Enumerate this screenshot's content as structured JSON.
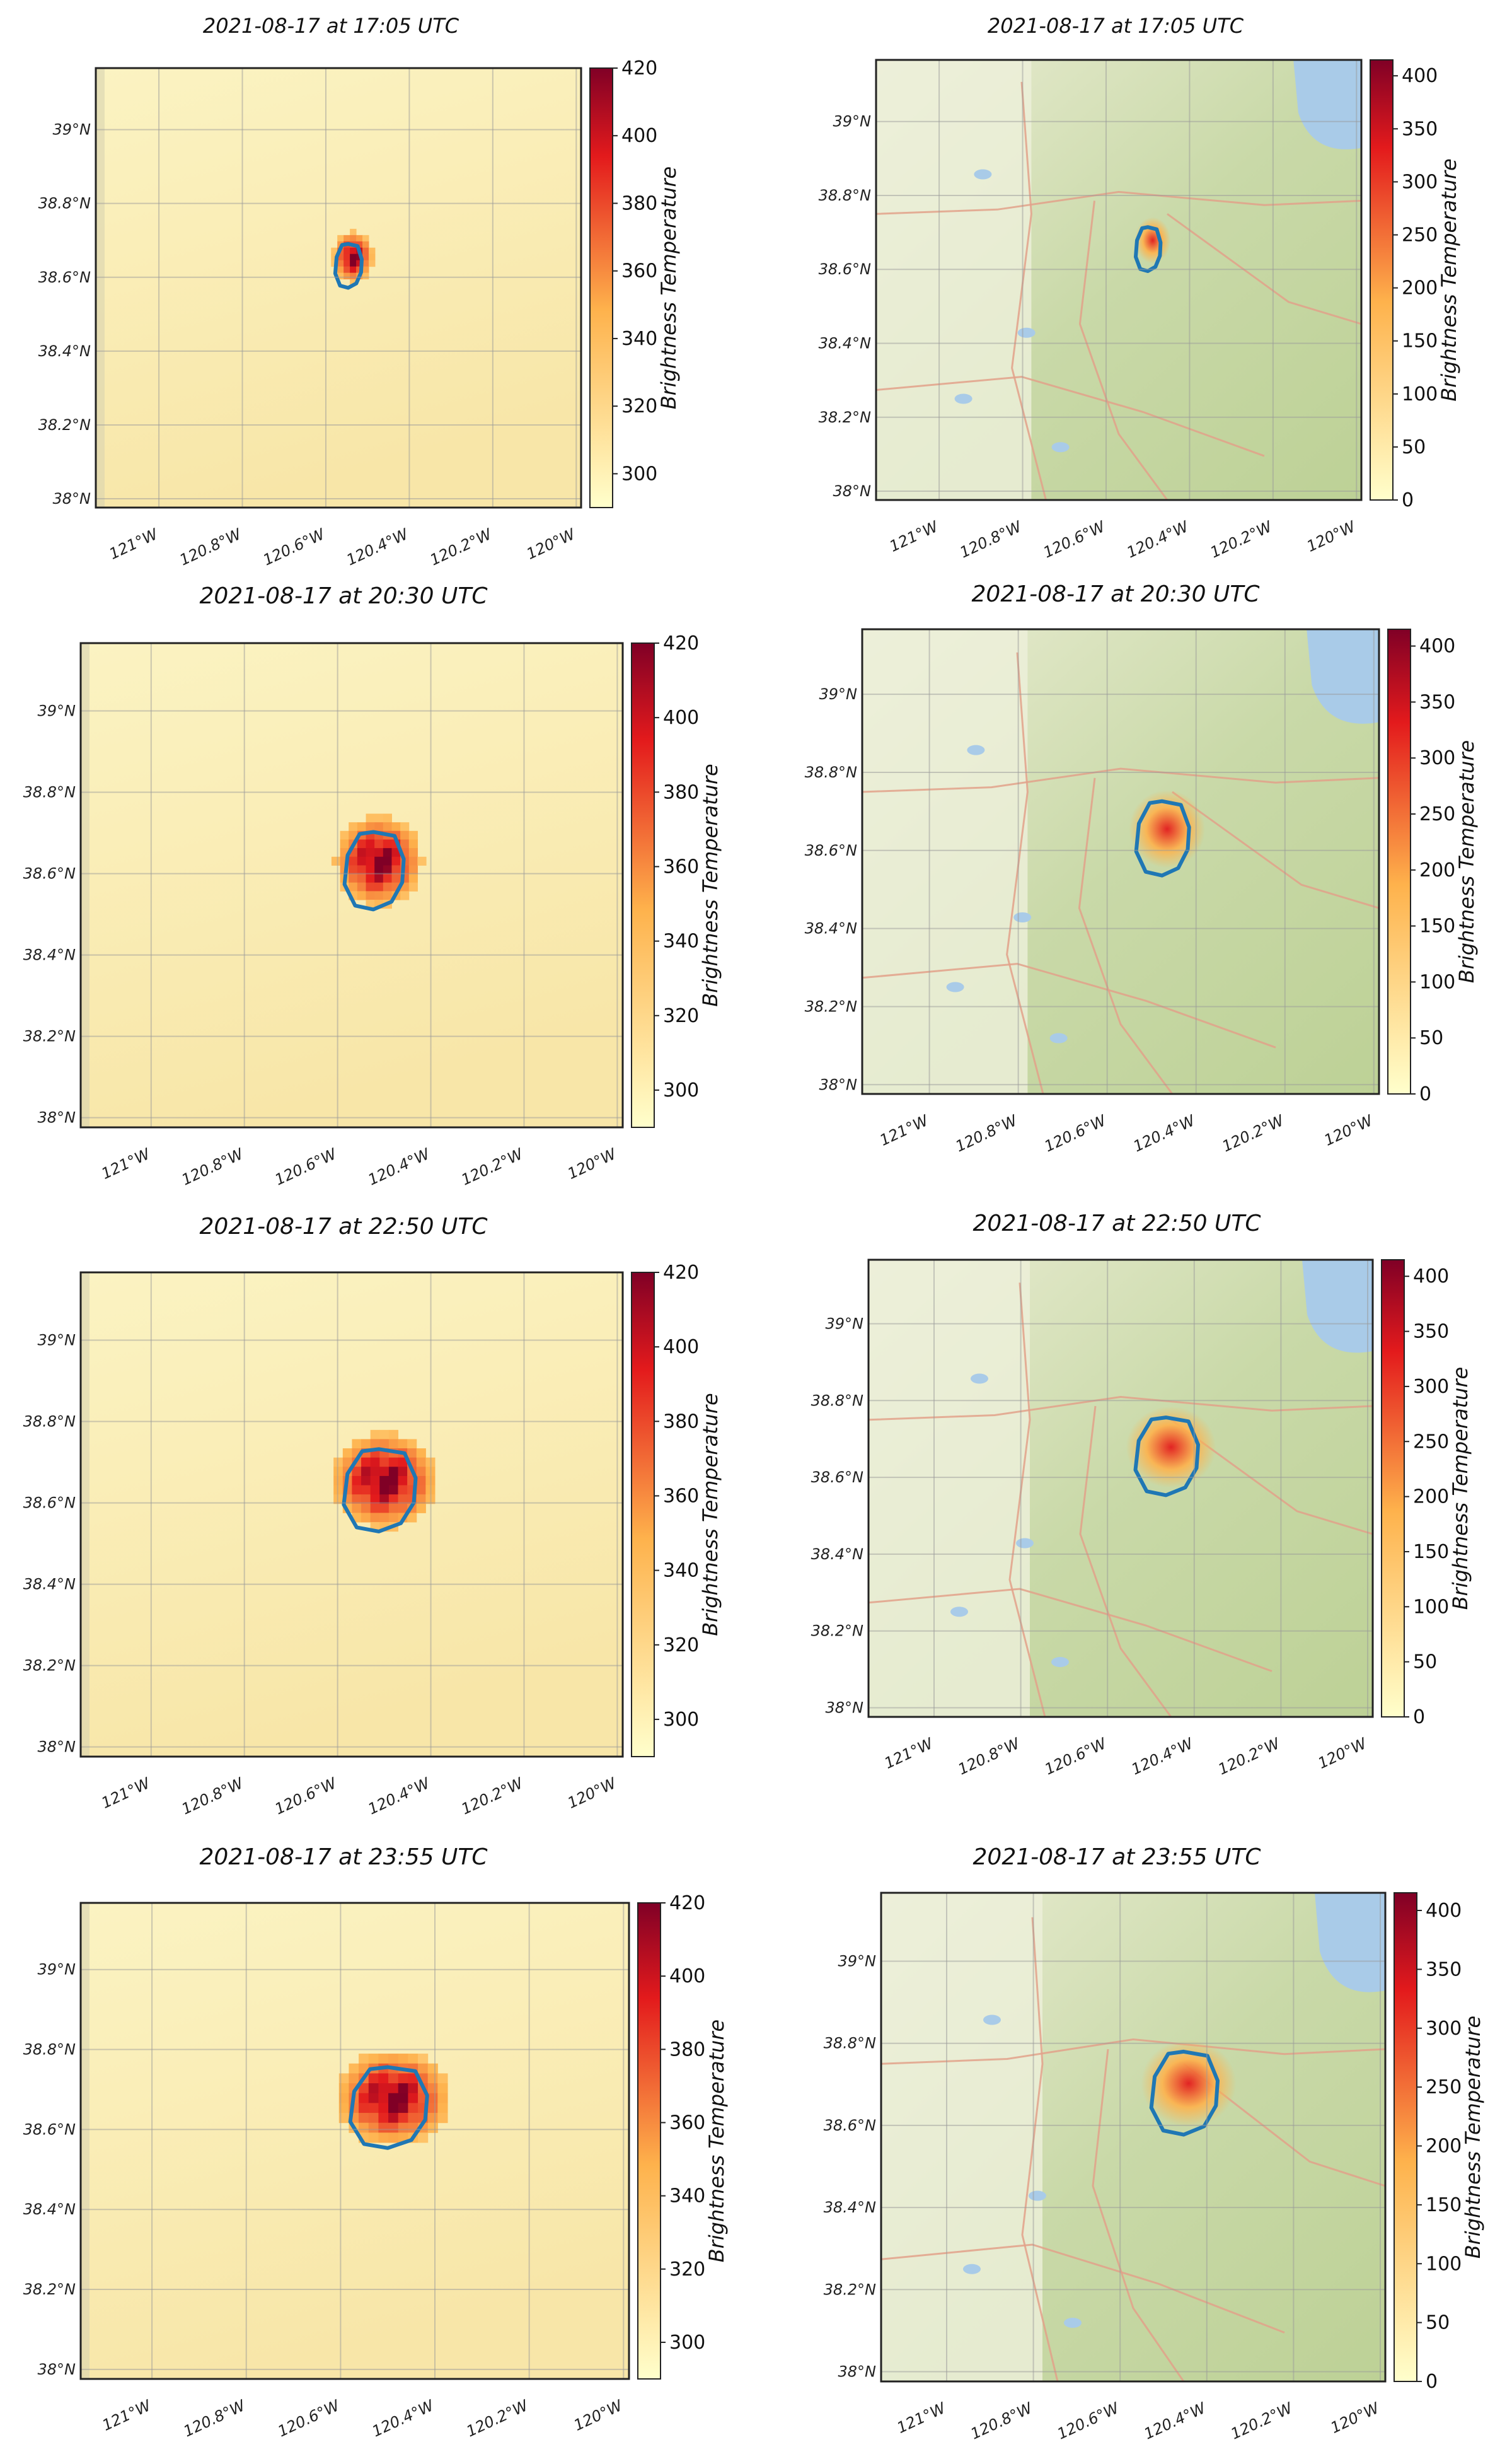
{
  "figure": {
    "rows": [
      {
        "time_title": "2021-08-17 at 17:05 UTC",
        "left": {
          "title": "2021-08-17 at 17:05 UTC",
          "kind": "brightness",
          "colorbar": {
            "label": "Brightness Temperature",
            "ticks": [
              "300",
              "320",
              "340",
              "360",
              "380",
              "400",
              "420"
            ],
            "vmin": 290,
            "vmax": 420
          }
        },
        "right": {
          "title": "2021-08-17 at 17:05 UTC",
          "kind": "basemap",
          "colorbar": {
            "label": "Brightness Temperature",
            "ticks": [
              "0",
              "50",
              "100",
              "150",
              "200",
              "250",
              "300",
              "350",
              "400"
            ],
            "vmin": 0,
            "vmax": 415
          }
        }
      },
      {
        "left": {
          "title": "2021-08-17 at 20:30 UTC",
          "kind": "brightness",
          "colorbar": {
            "label": "Brightness Temperature",
            "ticks": [
              "300",
              "320",
              "340",
              "360",
              "380",
              "400",
              "420"
            ],
            "vmin": 290,
            "vmax": 420
          }
        },
        "right": {
          "title": "2021-08-17 at 20:30 UTC",
          "kind": "basemap",
          "colorbar": {
            "label": "Brightness Temperature",
            "ticks": [
              "0",
              "50",
              "100",
              "150",
              "200",
              "250",
              "300",
              "350",
              "400"
            ],
            "vmin": 0,
            "vmax": 415
          }
        }
      },
      {
        "left": {
          "title": "2021-08-17 at 22:50 UTC",
          "kind": "brightness",
          "colorbar": {
            "label": "Brightness Temperature",
            "ticks": [
              "300",
              "320",
              "340",
              "360",
              "380",
              "400",
              "420"
            ],
            "vmin": 290,
            "vmax": 420
          }
        },
        "right": {
          "title": "2021-08-17 at 22:50 UTC",
          "kind": "basemap",
          "colorbar": {
            "label": "Brightness Temperature",
            "ticks": [
              "0",
              "50",
              "100",
              "150",
              "200",
              "250",
              "300",
              "350",
              "400"
            ],
            "vmin": 0,
            "vmax": 415
          }
        }
      },
      {
        "left": {
          "title": "2021-08-17 at 23:55 UTC",
          "kind": "brightness",
          "colorbar": {
            "label": "Brightness Temperature",
            "ticks": [
              "300",
              "320",
              "340",
              "360",
              "380",
              "400",
              "420"
            ],
            "vmin": 290,
            "vmax": 420
          }
        },
        "right": {
          "title": "2021-08-17 at 23:55 UTC",
          "kind": "basemap",
          "colorbar": {
            "label": "Brightness Temperature",
            "ticks": [
              "0",
              "50",
              "100",
              "150",
              "200",
              "250",
              "300",
              "350",
              "400"
            ],
            "vmin": 0,
            "vmax": 415
          }
        }
      }
    ],
    "lat_labels": [
      "39°N",
      "38.8°N",
      "38.6°N",
      "38.4°N",
      "38.2°N",
      "38°N"
    ],
    "lon_labels": [
      "121°W",
      "120.8°W",
      "120.6°W",
      "120.4°W",
      "120.2°W",
      "120°W"
    ],
    "colors": {
      "fire_outline": "#1f77b4",
      "cmap_low": "#ffffcc",
      "cmap_mid": "#feb24c",
      "cmap_high": "#e31a1c",
      "cmap_top": "#800026",
      "terrain_green": "#c9d9a8",
      "water": "#a9cbe8",
      "roads": "#e2a189"
    }
  }
}
